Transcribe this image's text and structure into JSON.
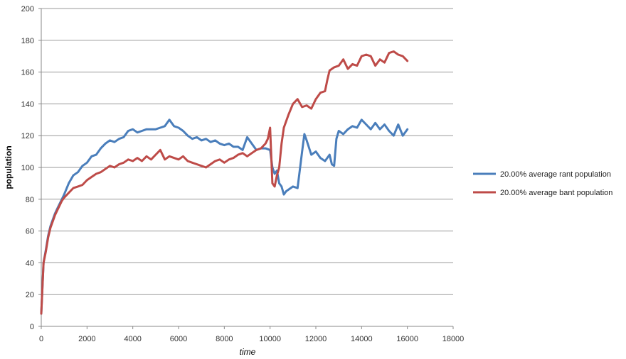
{
  "chart_data": {
    "type": "line",
    "title": "",
    "xlabel": "time",
    "ylabel": "population",
    "xlim": [
      0,
      18000
    ],
    "ylim": [
      0,
      200
    ],
    "x_ticks": [
      0,
      2000,
      4000,
      6000,
      8000,
      10000,
      12000,
      14000,
      16000,
      18000
    ],
    "y_ticks": [
      0,
      20,
      40,
      60,
      80,
      100,
      120,
      140,
      160,
      180,
      200
    ],
    "x_tick_labels": [
      "0",
      "2000",
      "4000",
      "6000",
      "8000",
      "10000",
      "12000",
      "14000",
      "16000",
      "18000"
    ],
    "y_tick_labels": [
      "0",
      "20",
      "40",
      "60",
      "80",
      "100",
      "120",
      "140",
      "160",
      "180",
      "200"
    ],
    "grid": "horizontal",
    "legend_position": "right",
    "series": [
      {
        "name": "20.00% average rant population",
        "color": "#4a7ebb",
        "x": [
          0,
          100,
          200,
          300,
          400,
          500,
          600,
          700,
          800,
          900,
          1000,
          1200,
          1400,
          1600,
          1800,
          2000,
          2200,
          2400,
          2600,
          2800,
          3000,
          3200,
          3400,
          3600,
          3800,
          4000,
          4200,
          4400,
          4600,
          4800,
          5000,
          5200,
          5400,
          5600,
          5800,
          6000,
          6200,
          6400,
          6600,
          6800,
          7000,
          7200,
          7400,
          7600,
          7800,
          8000,
          8200,
          8400,
          8600,
          8800,
          9000,
          9200,
          9400,
          9600,
          9800,
          10000,
          10100,
          10200,
          10300,
          10400,
          10500,
          10600,
          10700,
          10800,
          11000,
          11200,
          11400,
          11500,
          11600,
          11800,
          12000,
          12200,
          12400,
          12600,
          12700,
          12800,
          12900,
          13000,
          13200,
          13400,
          13600,
          13800,
          14000,
          14200,
          14400,
          14600,
          14800,
          15000,
          15200,
          15400,
          15600,
          15800,
          16000
        ],
        "y": [
          8,
          40,
          48,
          57,
          63,
          67,
          71,
          74,
          77,
          80,
          83,
          90,
          95,
          97,
          101,
          103,
          107,
          108,
          112,
          115,
          117,
          116,
          118,
          119,
          123,
          124,
          122,
          123,
          124,
          124,
          124,
          125,
          126,
          130,
          126,
          125,
          123,
          120,
          118,
          119,
          117,
          118,
          116,
          117,
          115,
          114,
          115,
          113,
          113,
          111,
          119,
          115,
          111,
          112,
          112,
          111,
          100,
          96,
          98,
          90,
          88,
          83,
          85,
          86,
          88,
          87,
          110,
          121,
          117,
          108,
          110,
          106,
          104,
          108,
          102,
          101,
          118,
          123,
          121,
          124,
          126,
          125,
          130,
          127,
          124,
          128,
          124,
          127,
          123,
          120,
          127,
          120,
          124
        ]
      },
      {
        "name": "20.00% average bant population",
        "color": "#be4b48",
        "x": [
          0,
          100,
          200,
          300,
          400,
          500,
          600,
          700,
          800,
          900,
          1000,
          1200,
          1400,
          1600,
          1800,
          2000,
          2200,
          2400,
          2600,
          2800,
          3000,
          3200,
          3400,
          3600,
          3800,
          4000,
          4200,
          4400,
          4600,
          4800,
          5000,
          5200,
          5400,
          5600,
          5800,
          6000,
          6200,
          6400,
          6600,
          6800,
          7000,
          7200,
          7400,
          7600,
          7800,
          8000,
          8200,
          8400,
          8600,
          8800,
          9000,
          9200,
          9400,
          9600,
          9800,
          9900,
          10000,
          10100,
          10200,
          10300,
          10400,
          10500,
          10600,
          10800,
          11000,
          11200,
          11400,
          11600,
          11800,
          12000,
          12200,
          12400,
          12500,
          12600,
          12800,
          13000,
          13200,
          13400,
          13600,
          13800,
          14000,
          14200,
          14400,
          14600,
          14800,
          15000,
          15200,
          15400,
          15600,
          15800,
          16000
        ],
        "y": [
          8,
          40,
          47,
          56,
          62,
          66,
          70,
          73,
          76,
          79,
          81,
          84,
          87,
          88,
          89,
          92,
          94,
          96,
          97,
          99,
          101,
          100,
          102,
          103,
          105,
          104,
          106,
          104,
          107,
          105,
          108,
          111,
          105,
          107,
          106,
          105,
          107,
          104,
          103,
          102,
          101,
          100,
          102,
          104,
          105,
          103,
          105,
          106,
          108,
          109,
          107,
          109,
          111,
          112,
          115,
          118,
          125,
          90,
          88,
          95,
          100,
          115,
          125,
          133,
          140,
          143,
          138,
          139,
          137,
          143,
          147,
          148,
          155,
          161,
          163,
          164,
          168,
          162,
          165,
          164,
          170,
          171,
          170,
          164,
          168,
          166,
          172,
          173,
          171,
          170,
          167
        ]
      }
    ]
  }
}
